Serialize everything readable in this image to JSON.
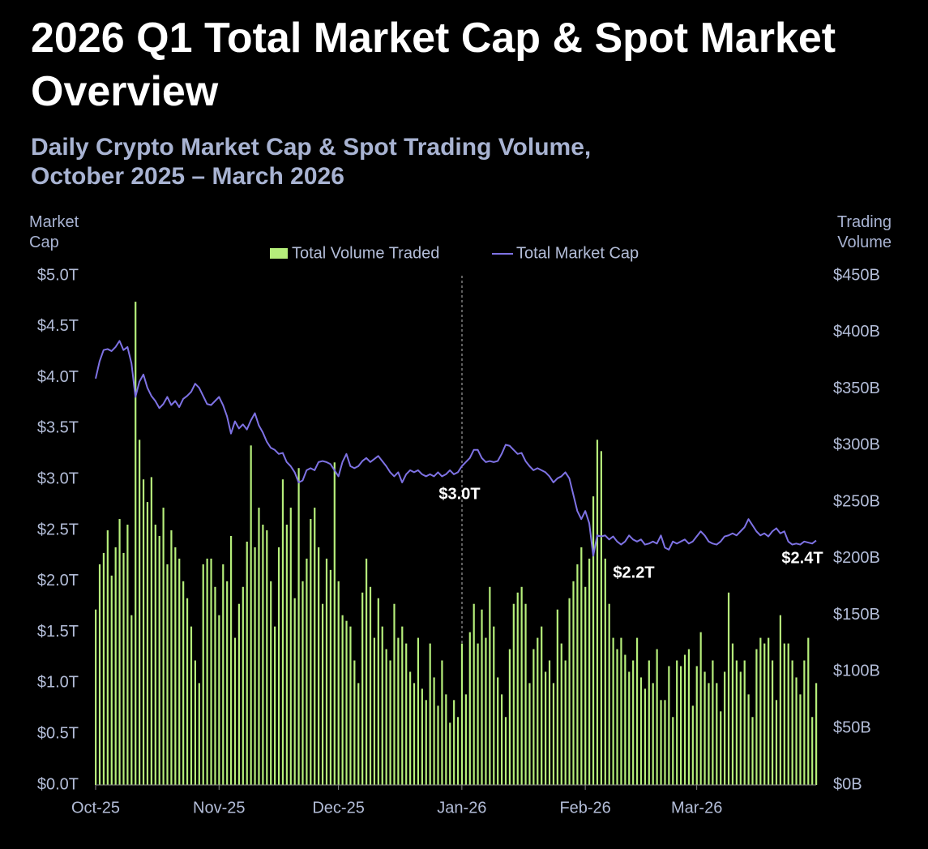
{
  "chart_data": {
    "type": "combo",
    "title": "2026 Q1 Total Market Cap & Spot Market Overview",
    "subtitle": "Daily Crypto Market Cap & Spot Trading Volume, October 2025 – March 2026",
    "y_label": "Market Cap",
    "y2_label": "Trading Volume",
    "annotations": [
      "$3.0T",
      "$2.2T",
      "$2.4T"
    ],
    "legend": "top",
    "categories": [
      "Oct-25",
      null,
      null,
      null,
      null,
      null,
      null,
      null,
      null,
      null,
      null,
      null,
      null,
      null,
      null,
      null,
      null,
      null,
      null,
      null,
      null,
      null,
      null,
      null,
      null,
      null,
      null,
      null,
      null,
      null,
      null,
      "Nov-25",
      null,
      null,
      null,
      null,
      null,
      null,
      null,
      null,
      null,
      null,
      null,
      null,
      null,
      null,
      null,
      null,
      null,
      null,
      null,
      null,
      null,
      null,
      null,
      null,
      null,
      null,
      null,
      null,
      null,
      "Dec-25",
      null,
      null,
      null,
      null,
      null,
      null,
      null,
      null,
      null,
      null,
      null,
      null,
      null,
      null,
      null,
      null,
      null,
      null,
      null,
      null,
      null,
      null,
      null,
      null,
      null,
      null,
      null,
      null,
      null,
      null,
      "Jan-26",
      null,
      null,
      null,
      null,
      null,
      null,
      null,
      null,
      null,
      null,
      null,
      null,
      null,
      null,
      null,
      null,
      null,
      null,
      null,
      null,
      null,
      null,
      null,
      null,
      null,
      null,
      null,
      null,
      null,
      null,
      "Feb-26",
      null,
      null,
      null,
      null,
      null,
      null,
      null,
      null,
      null,
      null,
      null,
      null,
      null,
      null,
      null,
      null,
      null,
      null,
      null,
      null,
      null,
      null,
      null,
      null,
      null,
      null,
      null,
      "Mar-26",
      null,
      null,
      null,
      null,
      null,
      null,
      null,
      null,
      null,
      null,
      null,
      null,
      null,
      null,
      null,
      null,
      null,
      null,
      null,
      null,
      null,
      null,
      null,
      null,
      null,
      null,
      null,
      null,
      null,
      null
    ],
    "series": [
      {
        "name": "Total Volume Traded",
        "type": "bar",
        "axis": "y2",
        "color": "#b6ef7b",
        "values": [
          155,
          195,
          205,
          225,
          185,
          210,
          235,
          205,
          230,
          150,
          427,
          305,
          270,
          250,
          272,
          230,
          220,
          245,
          195,
          225,
          210,
          200,
          180,
          165,
          140,
          110,
          90,
          195,
          200,
          200,
          175,
          150,
          195,
          180,
          220,
          130,
          160,
          175,
          215,
          300,
          210,
          245,
          230,
          225,
          180,
          140,
          210,
          270,
          230,
          245,
          165,
          280,
          180,
          200,
          235,
          245,
          210,
          160,
          200,
          190,
          285,
          180,
          150,
          145,
          140,
          110,
          90,
          170,
          200,
          175,
          130,
          165,
          140,
          120,
          110,
          160,
          130,
          140,
          125,
          100,
          90,
          130,
          85,
          75,
          125,
          95,
          70,
          110,
          80,
          55,
          75,
          60,
          125,
          80,
          135,
          160,
          125,
          155,
          130,
          175,
          140,
          95,
          80,
          60,
          120,
          160,
          170,
          175,
          160,
          90,
          120,
          130,
          140,
          100,
          110,
          90,
          155,
          125,
          110,
          165,
          180,
          195,
          210,
          175,
          200,
          255,
          305,
          295,
          200,
          160,
          130,
          120,
          130,
          115,
          100,
          110,
          130,
          95,
          85,
          110,
          90,
          120,
          75,
          75,
          105,
          60,
          110,
          105,
          115,
          120,
          70,
          105,
          135,
          100,
          90,
          110,
          90,
          65,
          100,
          170,
          125,
          110,
          100,
          110,
          80,
          60,
          120,
          130,
          125,
          130,
          110,
          75,
          150,
          125,
          125,
          110,
          95,
          80,
          110,
          130,
          60,
          90
        ]
      },
      {
        "name": "Total Market Cap",
        "type": "line",
        "color": "#7e72e4",
        "values": [
          3.99,
          4.16,
          4.27,
          4.28,
          4.26,
          4.3,
          4.36,
          4.27,
          4.3,
          4.14,
          3.81,
          3.96,
          4.03,
          3.9,
          3.82,
          3.77,
          3.7,
          3.74,
          3.81,
          3.73,
          3.77,
          3.71,
          3.79,
          3.82,
          3.86,
          3.94,
          3.9,
          3.82,
          3.74,
          3.73,
          3.77,
          3.81,
          3.73,
          3.62,
          3.45,
          3.57,
          3.5,
          3.54,
          3.49,
          3.58,
          3.65,
          3.53,
          3.46,
          3.37,
          3.31,
          3.29,
          3.25,
          3.26,
          3.17,
          3.13,
          3.07,
          2.97,
          2.99,
          3.09,
          3.11,
          3.09,
          3.17,
          3.18,
          3.17,
          3.15,
          3.09,
          3.03,
          3.17,
          3.25,
          3.13,
          3.11,
          3.13,
          3.18,
          3.21,
          3.17,
          3.2,
          3.23,
          3.18,
          3.13,
          3.07,
          3.03,
          3.07,
          2.97,
          3.05,
          3.09,
          3.07,
          3.09,
          3.05,
          3.03,
          3.05,
          3.03,
          3.07,
          3.03,
          3.05,
          3.09,
          3.05,
          3.07,
          3.13,
          3.17,
          3.21,
          3.29,
          3.29,
          3.21,
          3.17,
          3.18,
          3.17,
          3.18,
          3.25,
          3.34,
          3.33,
          3.29,
          3.25,
          3.26,
          3.18,
          3.13,
          3.09,
          3.11,
          3.09,
          3.07,
          3.03,
          2.97,
          3.01,
          3.03,
          3.07,
          3.01,
          2.85,
          2.69,
          2.61,
          2.69,
          2.57,
          2.25,
          2.45,
          2.44,
          2.45,
          2.41,
          2.44,
          2.39,
          2.36,
          2.39,
          2.45,
          2.41,
          2.39,
          2.41,
          2.36,
          2.37,
          2.39,
          2.37,
          2.45,
          2.33,
          2.31,
          2.39,
          2.37,
          2.39,
          2.41,
          2.37,
          2.39,
          2.44,
          2.49,
          2.45,
          2.39,
          2.37,
          2.36,
          2.39,
          2.44,
          2.45,
          2.47,
          2.45,
          2.49,
          2.53,
          2.61,
          2.55,
          2.49,
          2.45,
          2.47,
          2.44,
          2.49,
          2.52,
          2.47,
          2.49,
          2.39,
          2.36,
          2.37,
          2.36,
          2.39,
          2.38,
          2.37,
          2.4
        ]
      }
    ],
    "ylim": [
      0,
      5
    ],
    "yticks": [
      {
        "value": 0,
        "label": "$0.0T"
      },
      {
        "value": 0.5,
        "label": "$0.5T"
      },
      {
        "value": 1,
        "label": "$1.0T"
      },
      {
        "value": 1.5,
        "label": "$1.5T"
      },
      {
        "value": 2,
        "label": "$2.0T"
      },
      {
        "value": 2.5,
        "label": "$2.5T"
      },
      {
        "value": 3,
        "label": "$3.0T"
      },
      {
        "value": 3.5,
        "label": "$3.5T"
      },
      {
        "value": 4,
        "label": "$4.0T"
      },
      {
        "value": 4.5,
        "label": "$4.5T"
      },
      {
        "value": 5,
        "label": "$5.0T"
      }
    ],
    "y2lim": [
      0,
      450
    ],
    "y2ticks": [
      {
        "value": 0,
        "label": "$0B"
      },
      {
        "value": 50,
        "label": "$50B"
      },
      {
        "value": 100,
        "label": "$100B"
      },
      {
        "value": 150,
        "label": "$150B"
      },
      {
        "value": 200,
        "label": "$200B"
      },
      {
        "value": 250,
        "label": "$250B"
      },
      {
        "value": 300,
        "label": "$300B"
      },
      {
        "value": 350,
        "label": "$350B"
      },
      {
        "value": 400,
        "label": "$400B"
      },
      {
        "value": 450,
        "label": "$450B"
      }
    ],
    "grid": false
  }
}
